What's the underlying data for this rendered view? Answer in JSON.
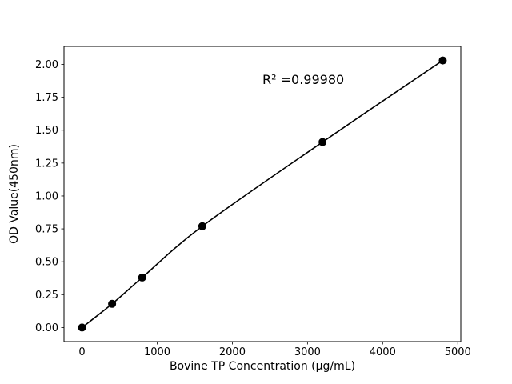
{
  "chart_data": {
    "type": "scatter",
    "title": "",
    "xlabel": "Bovine TP Concentration (μg/mL)",
    "ylabel": "OD Value(450nm)",
    "annotation": "R² =0.99980",
    "annotation_pos": {
      "x": 2400,
      "y": 1.85
    },
    "x": [
      0,
      400,
      800,
      1600,
      3200,
      4800
    ],
    "y": [
      0.0,
      0.18,
      0.38,
      0.77,
      1.41,
      2.03
    ],
    "xlim": [
      -240,
      5040
    ],
    "ylim": [
      -0.107,
      2.137
    ],
    "xticks": [
      0,
      1000,
      2000,
      3000,
      4000,
      5000
    ],
    "xtick_labels": [
      "0",
      "1000",
      "2000",
      "3000",
      "4000",
      "5000"
    ],
    "yticks": [
      0.0,
      0.25,
      0.5,
      0.75,
      1.0,
      1.25,
      1.5,
      1.75,
      2.0
    ],
    "ytick_labels": [
      "0.00",
      "0.25",
      "0.50",
      "0.75",
      "1.00",
      "1.25",
      "1.50",
      "1.75",
      "2.00"
    ],
    "line_color": "#000000",
    "marker_color": "#000000",
    "marker_size_px": 5,
    "background_color": "#ffffff",
    "grid": false,
    "legend": "none",
    "curve": "smooth-fit-through-points"
  }
}
